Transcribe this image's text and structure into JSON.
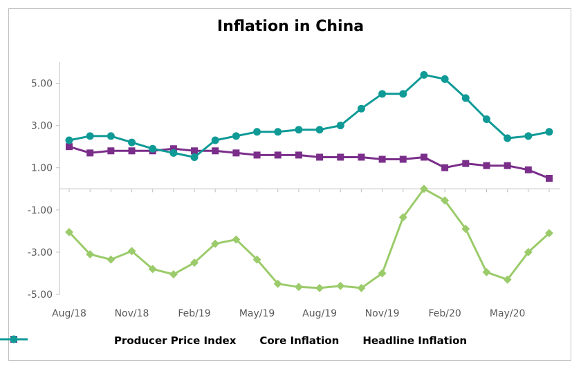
{
  "chart_data": {
    "type": "line",
    "title": "Inflation in China",
    "xlabel": "",
    "ylabel": "",
    "ylim": [
      -5,
      6
    ],
    "yticks": [
      5,
      3,
      1,
      -1,
      -3,
      -5
    ],
    "ytick_labels": [
      "5.00",
      "3.00",
      "1.00",
      "-1.00",
      "-3.00",
      "-5.00"
    ],
    "categories": [
      "Aug/18",
      "Sep/18",
      "Oct/18",
      "Nov/18",
      "Dec/18",
      "Jan/19",
      "Feb/19",
      "Mar/19",
      "Apr/19",
      "May/19",
      "Jun/19",
      "Jul/19",
      "Aug/19",
      "Sep/19",
      "Oct/19",
      "Nov/19",
      "Dec/19",
      "Jan/20",
      "Feb/20",
      "Mar/20",
      "Apr/20",
      "May/20",
      "Jun/20",
      "Jul/20"
    ],
    "xtick_labels": [
      "Aug/18",
      "Nov/18",
      "Feb/19",
      "May/19",
      "Aug/19",
      "Nov/19",
      "Feb/20",
      "May/20"
    ],
    "xtick_indices": [
      0,
      3,
      6,
      9,
      12,
      15,
      18,
      21
    ],
    "legend_position": "bottom",
    "grid": false,
    "series": [
      {
        "name": "Producer Price Index",
        "color": "#9bcb6a",
        "marker": "diamond",
        "values": [
          -2.05,
          -3.1,
          -3.35,
          -2.95,
          -3.8,
          -4.05,
          -3.5,
          -2.6,
          -2.4,
          -3.35,
          -4.5,
          -4.65,
          -4.7,
          -4.6,
          -4.7,
          -4.0,
          -1.35,
          0.0,
          -0.55,
          -1.9,
          -3.95,
          -4.3,
          -3.0,
          -2.1
        ]
      },
      {
        "name": "Core Inflation",
        "color": "#7a2e8a",
        "marker": "square",
        "values": [
          2.0,
          1.7,
          1.8,
          1.8,
          1.8,
          1.9,
          1.8,
          1.8,
          1.7,
          1.6,
          1.6,
          1.6,
          1.5,
          1.5,
          1.5,
          1.4,
          1.4,
          1.5,
          1.0,
          1.2,
          1.1,
          1.1,
          0.9,
          0.5
        ]
      },
      {
        "name": "Headline Inflation",
        "color": "#0f9a96",
        "marker": "circle",
        "values": [
          2.3,
          2.5,
          2.5,
          2.2,
          1.9,
          1.7,
          1.5,
          2.3,
          2.5,
          2.7,
          2.7,
          2.8,
          2.8,
          3.0,
          3.8,
          4.5,
          4.5,
          5.4,
          5.2,
          4.3,
          3.3,
          2.4,
          2.5,
          2.7
        ]
      }
    ]
  }
}
